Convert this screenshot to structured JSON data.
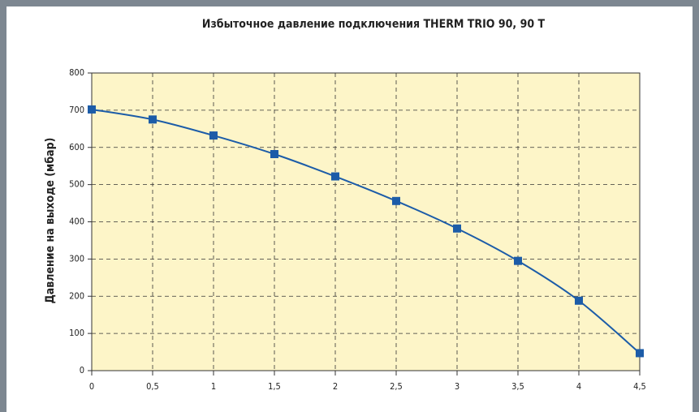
{
  "chart_data": {
    "type": "line",
    "title": "Избыточное давление подключения THERM TRIO 90, 90 T",
    "y_label": "Давление на выходе (мбар)",
    "x": [
      0,
      0.5,
      1,
      1.5,
      2,
      2.5,
      3,
      3.5,
      4,
      4.5
    ],
    "series": [
      {
        "name": "THERM TRIO 90, 90 T",
        "color": "#1c5ca8",
        "values": [
          702,
          675,
          632,
          582,
          522,
          456,
          382,
          295,
          188,
          47
        ]
      }
    ],
    "xlim": [
      0,
      4.5
    ],
    "xticks": [
      0,
      {
        "value": 0.5,
        "label": "0,5"
      },
      1,
      {
        "value": 1.5,
        "label": "1,5"
      },
      2,
      {
        "value": 2.5,
        "label": "2,5"
      },
      3,
      {
        "value": 3.5,
        "label": "3,5"
      },
      4,
      {
        "value": 4.5,
        "label": "4,5"
      }
    ],
    "ylim": [
      0,
      800
    ],
    "yticks": [
      0,
      100,
      200,
      300,
      400,
      500,
      600,
      700,
      800
    ],
    "grid": true
  }
}
